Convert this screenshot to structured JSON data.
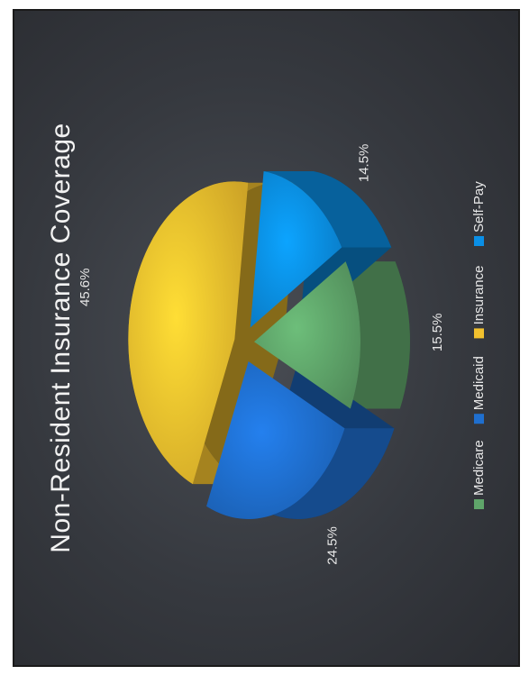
{
  "chart_data": {
    "type": "pie",
    "title": "Non-Resident Insurance Coverage",
    "slices": [
      {
        "label": "Medicare",
        "value": 15.5,
        "value_label": "15.5%",
        "color": "#5fa56a"
      },
      {
        "label": "Medicaid",
        "value": 24.5,
        "value_label": "24.5%",
        "color": "#1f6fcf"
      },
      {
        "label": "Insurance",
        "value": 45.6,
        "value_label": "45.6%",
        "color": "#f2c12e"
      },
      {
        "label": "Self-Pay",
        "value": 14.5,
        "value_label": "14.5%",
        "color": "#0a8fe6"
      }
    ],
    "legend_position": "bottom",
    "style": "3d-exploded"
  }
}
